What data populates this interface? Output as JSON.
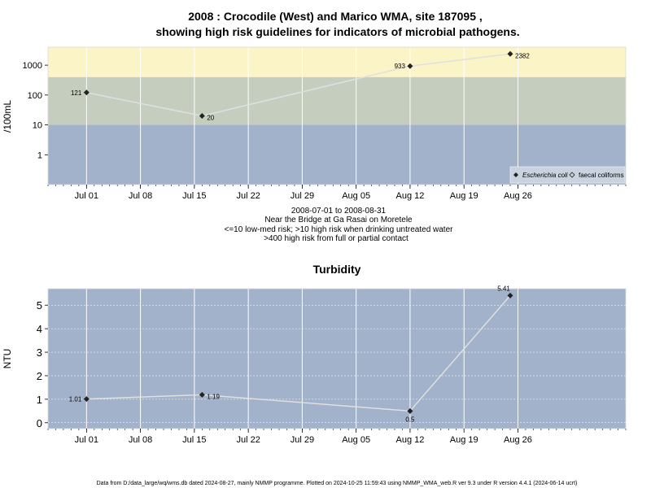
{
  "colors": {
    "band_high": "#fbf4c6",
    "band_mid": "#c5cdbf",
    "band_low": "#a2b2ca",
    "panel_bg": "#a2b2ca",
    "grid": "#ffffff",
    "line": "#e0e0e0",
    "marker": "#222222"
  },
  "chart_data": [
    {
      "type": "line",
      "title_line1": "2008 : Crocodile (West) and Marico WMA, site 187095 ,",
      "title_line2": "showing high risk guidelines for indicators of microbial pathogens.",
      "ylabel": "/100mL",
      "yscale": "log",
      "ylim": [
        0.1,
        4000
      ],
      "yticks": [
        {
          "v": 1,
          "label": "1"
        },
        {
          "v": 10,
          "label": "10"
        },
        {
          "v": 100,
          "label": "100"
        },
        {
          "v": 1000,
          "label": "1000"
        }
      ],
      "xlim": [
        "2008-06-26",
        "2008-09-09"
      ],
      "xticks": [
        {
          "date": "2008-07-01",
          "label": "Jul 01"
        },
        {
          "date": "2008-07-08",
          "label": "Jul 08"
        },
        {
          "date": "2008-07-15",
          "label": "Jul 15"
        },
        {
          "date": "2008-07-22",
          "label": "Jul 22"
        },
        {
          "date": "2008-07-29",
          "label": "Jul 29"
        },
        {
          "date": "2008-08-05",
          "label": "Aug 05"
        },
        {
          "date": "2008-08-12",
          "label": "Aug 12"
        },
        {
          "date": "2008-08-19",
          "label": "Aug 19"
        },
        {
          "date": "2008-08-26",
          "label": "Aug 26"
        }
      ],
      "bands": [
        {
          "from": 0.1,
          "to": 10,
          "color": "#a2b2ca"
        },
        {
          "from": 10,
          "to": 400,
          "color": "#c5cdbf"
        },
        {
          "from": 400,
          "to": 4000,
          "color": "#fbf4c6"
        }
      ],
      "series": [
        {
          "name": "Escherichia coli",
          "points": [
            {
              "date": "2008-07-01",
              "value": 121,
              "label": "121",
              "label_side": "left"
            },
            {
              "date": "2008-07-16",
              "value": 20,
              "label": "20",
              "label_side": "right"
            },
            {
              "date": "2008-08-12",
              "value": 933,
              "label": "933",
              "label_side": "left"
            },
            {
              "date": "2008-08-25",
              "value": 2382,
              "label": "2382",
              "label_side": "right"
            }
          ]
        }
      ],
      "legend": {
        "placement": "bottom-right",
        "entries": [
          {
            "label": "Escherichia coli",
            "marker": "filled-diamond",
            "italic": true
          },
          {
            "label": "faecal coliforms",
            "marker": "open-diamond",
            "italic": false
          }
        ]
      },
      "caption": [
        "2008-07-01 to 2008-08-31",
        "Near the Bridge at Ga Rasai on Moretele",
        "<=10 low-med risk; >10 high risk when drinking untreated water",
        ">400 high risk from full or partial contact"
      ]
    },
    {
      "type": "line",
      "title": "Turbidity",
      "ylabel": "NTU",
      "ylim": [
        -0.25,
        5.7
      ],
      "yticks": [
        {
          "v": 0,
          "label": "0"
        },
        {
          "v": 1,
          "label": "1"
        },
        {
          "v": 2,
          "label": "2"
        },
        {
          "v": 3,
          "label": "3"
        },
        {
          "v": 4,
          "label": "4"
        },
        {
          "v": 5,
          "label": "5"
        }
      ],
      "xlim": [
        "2008-06-26",
        "2008-09-09"
      ],
      "xticks": [
        {
          "date": "2008-07-01",
          "label": "Jul 01"
        },
        {
          "date": "2008-07-08",
          "label": "Jul 08"
        },
        {
          "date": "2008-07-15",
          "label": "Jul 15"
        },
        {
          "date": "2008-07-22",
          "label": "Jul 22"
        },
        {
          "date": "2008-07-29",
          "label": "Jul 29"
        },
        {
          "date": "2008-08-05",
          "label": "Aug 05"
        },
        {
          "date": "2008-08-12",
          "label": "Aug 12"
        },
        {
          "date": "2008-08-19",
          "label": "Aug 19"
        },
        {
          "date": "2008-08-26",
          "label": "Aug 26"
        }
      ],
      "series": [
        {
          "name": "",
          "points": [
            {
              "date": "2008-07-01",
              "value": 1.01,
              "label": "1.01",
              "label_side": "left"
            },
            {
              "date": "2008-07-16",
              "value": 1.19,
              "label": "1.19",
              "label_side": "right"
            },
            {
              "date": "2008-08-12",
              "value": 0.5,
              "label": "0.5",
              "label_side": "below"
            },
            {
              "date": "2008-08-25",
              "value": 5.41,
              "label": "5.41",
              "label_side": "above"
            }
          ]
        }
      ]
    }
  ],
  "footer": "Data from D:/data_large/wq/wms.db dated 2024-08-27, mainly NMMP programme. Plotted on 2024-10-25 11:59:43 using NMMP_WMA_web.R ver 9.3 under R version 4.4.1 (2024-06-14 ucrt)"
}
